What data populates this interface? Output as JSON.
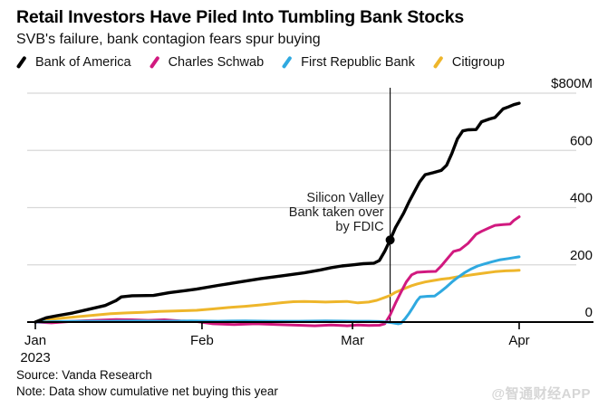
{
  "header": {
    "title": "Retail Investors Have Piled Into Tumbling Bank Stocks",
    "subtitle": "SVB's failure, bank contagion fears spur buying"
  },
  "footer": {
    "source": "Source: Vanda Research",
    "note": "Note: Data show cumulative net buying this year"
  },
  "watermark": "@智通财经APP",
  "colors": {
    "grid": "#d8d8d8",
    "axis": "#000000",
    "annotation_text": "#1f1f1f"
  },
  "chart_data": {
    "type": "line",
    "title": "Retail Investors Have Piled Into Tumbling Bank Stocks",
    "subtitle": "SVB's failure, bank contagion fears spur buying",
    "unit": "$M cumulative net buying",
    "x_axis": {
      "range_days": [
        1,
        91
      ],
      "ticks": [
        {
          "day": 1,
          "label": "Jan",
          "sublabel": "2023"
        },
        {
          "day": 32,
          "label": "Feb",
          "sublabel": ""
        },
        {
          "day": 60,
          "label": "Mar",
          "sublabel": ""
        },
        {
          "day": 91,
          "label": "Apr",
          "sublabel": ""
        }
      ]
    },
    "y_axis": {
      "range": [
        0,
        800
      ],
      "ticks": [
        {
          "value": 800,
          "label": "$800M"
        },
        {
          "value": 600,
          "label": "600"
        },
        {
          "value": 400,
          "label": "400"
        },
        {
          "value": 200,
          "label": "200"
        },
        {
          "value": 0,
          "label": "0"
        }
      ]
    },
    "annotation": {
      "lines": [
        "Silicon Valley",
        "Bank taken over",
        "by FDIC"
      ],
      "day": 67,
      "marker_series": "Bank of America",
      "marker_value": 287
    },
    "series": [
      {
        "name": "Bank of America",
        "color": "#000000",
        "points": [
          [
            1,
            0
          ],
          [
            3,
            15
          ],
          [
            5,
            22
          ],
          [
            8,
            32
          ],
          [
            11,
            45
          ],
          [
            14,
            58
          ],
          [
            16,
            75
          ],
          [
            17,
            88
          ],
          [
            19,
            92
          ],
          [
            23,
            93
          ],
          [
            26,
            103
          ],
          [
            29,
            110
          ],
          [
            31,
            115
          ],
          [
            35,
            128
          ],
          [
            39,
            140
          ],
          [
            43,
            152
          ],
          [
            47,
            162
          ],
          [
            51,
            172
          ],
          [
            54,
            182
          ],
          [
            56,
            190
          ],
          [
            58,
            196
          ],
          [
            60,
            200
          ],
          [
            62,
            204
          ],
          [
            64,
            206
          ],
          [
            65,
            215
          ],
          [
            66,
            248
          ],
          [
            67,
            287
          ],
          [
            68,
            330
          ],
          [
            69.5,
            380
          ],
          [
            70.5,
            420
          ],
          [
            71.5,
            455
          ],
          [
            72.5,
            490
          ],
          [
            73.5,
            515
          ],
          [
            75,
            522
          ],
          [
            76.5,
            530
          ],
          [
            77.5,
            548
          ],
          [
            78.5,
            590
          ],
          [
            79.5,
            640
          ],
          [
            80.5,
            668
          ],
          [
            81.5,
            672
          ],
          [
            83,
            673
          ],
          [
            84,
            700
          ],
          [
            85.5,
            710
          ],
          [
            86.5,
            715
          ],
          [
            88,
            745
          ],
          [
            89,
            752
          ],
          [
            90,
            760
          ],
          [
            91,
            765
          ]
        ]
      },
      {
        "name": "Charles Schwab",
        "color": "#d1197f",
        "points": [
          [
            1,
            0
          ],
          [
            4,
            -3
          ],
          [
            8,
            3
          ],
          [
            12,
            6
          ],
          [
            16,
            9
          ],
          [
            19,
            8
          ],
          [
            22,
            6
          ],
          [
            25,
            8
          ],
          [
            28,
            4
          ],
          [
            31,
            2
          ],
          [
            34,
            -6
          ],
          [
            38,
            -9
          ],
          [
            42,
            -6
          ],
          [
            46,
            -9
          ],
          [
            50,
            -11
          ],
          [
            53,
            -13
          ],
          [
            56,
            -10
          ],
          [
            59,
            -13
          ],
          [
            61,
            -10
          ],
          [
            63,
            -12
          ],
          [
            65,
            -11
          ],
          [
            66,
            -6
          ],
          [
            67,
            25
          ],
          [
            68,
            66
          ],
          [
            69,
            104
          ],
          [
            70,
            140
          ],
          [
            71,
            165
          ],
          [
            72,
            174
          ],
          [
            74,
            176
          ],
          [
            75.5,
            177
          ],
          [
            76.5,
            196
          ],
          [
            78,
            230
          ],
          [
            78.8,
            247
          ],
          [
            80,
            253
          ],
          [
            81.5,
            275
          ],
          [
            83,
            307
          ],
          [
            84,
            317
          ],
          [
            85.5,
            330
          ],
          [
            86.5,
            338
          ],
          [
            88,
            341
          ],
          [
            89.3,
            342
          ],
          [
            90,
            355
          ],
          [
            91,
            368
          ]
        ]
      },
      {
        "name": "First Republic Bank",
        "color": "#2fa9e0",
        "points": [
          [
            1,
            0
          ],
          [
            5,
            2
          ],
          [
            10,
            3
          ],
          [
            15,
            3
          ],
          [
            20,
            4
          ],
          [
            25,
            3
          ],
          [
            30,
            4
          ],
          [
            35,
            3
          ],
          [
            40,
            4
          ],
          [
            45,
            3
          ],
          [
            50,
            3
          ],
          [
            55,
            4
          ],
          [
            60,
            3
          ],
          [
            63,
            3
          ],
          [
            65,
            2
          ],
          [
            66.5,
            0
          ],
          [
            67.5,
            -3
          ],
          [
            68.5,
            -6
          ],
          [
            69,
            -4
          ],
          [
            69.8,
            12
          ],
          [
            70.5,
            30
          ],
          [
            71.2,
            50
          ],
          [
            72,
            75
          ],
          [
            72.6,
            88
          ],
          [
            74,
            90
          ],
          [
            75.3,
            91
          ],
          [
            76.3,
            105
          ],
          [
            77.3,
            120
          ],
          [
            78.5,
            140
          ],
          [
            79.5,
            155
          ],
          [
            80.8,
            172
          ],
          [
            82,
            185
          ],
          [
            83.3,
            196
          ],
          [
            84.5,
            203
          ],
          [
            86,
            211
          ],
          [
            87.5,
            218
          ],
          [
            89,
            222
          ],
          [
            90,
            225
          ],
          [
            91,
            228
          ]
        ]
      },
      {
        "name": "Citigroup",
        "color": "#eeb62b",
        "points": [
          [
            1,
            0
          ],
          [
            3,
            8
          ],
          [
            6,
            14
          ],
          [
            9,
            19
          ],
          [
            12,
            24
          ],
          [
            15,
            29
          ],
          [
            18,
            32
          ],
          [
            21,
            34
          ],
          [
            24,
            37
          ],
          [
            27,
            39
          ],
          [
            31,
            41
          ],
          [
            34,
            46
          ],
          [
            37,
            51
          ],
          [
            40,
            55
          ],
          [
            43,
            60
          ],
          [
            45,
            64
          ],
          [
            47,
            68
          ],
          [
            49,
            71
          ],
          [
            51,
            72
          ],
          [
            53,
            71
          ],
          [
            55,
            70
          ],
          [
            57,
            71
          ],
          [
            59,
            72
          ],
          [
            61,
            67
          ],
          [
            63,
            70
          ],
          [
            64.5,
            76
          ],
          [
            66,
            86
          ],
          [
            67,
            93
          ],
          [
            68,
            104
          ],
          [
            69,
            112
          ],
          [
            70,
            120
          ],
          [
            71,
            127
          ],
          [
            72,
            133
          ],
          [
            73.5,
            140
          ],
          [
            75,
            145
          ],
          [
            76.5,
            150
          ],
          [
            78,
            153
          ],
          [
            79.5,
            158
          ],
          [
            81,
            162
          ],
          [
            82.5,
            166
          ],
          [
            84.5,
            171
          ],
          [
            86.5,
            176
          ],
          [
            88.5,
            179
          ],
          [
            90,
            180
          ],
          [
            91,
            181
          ]
        ]
      }
    ]
  }
}
